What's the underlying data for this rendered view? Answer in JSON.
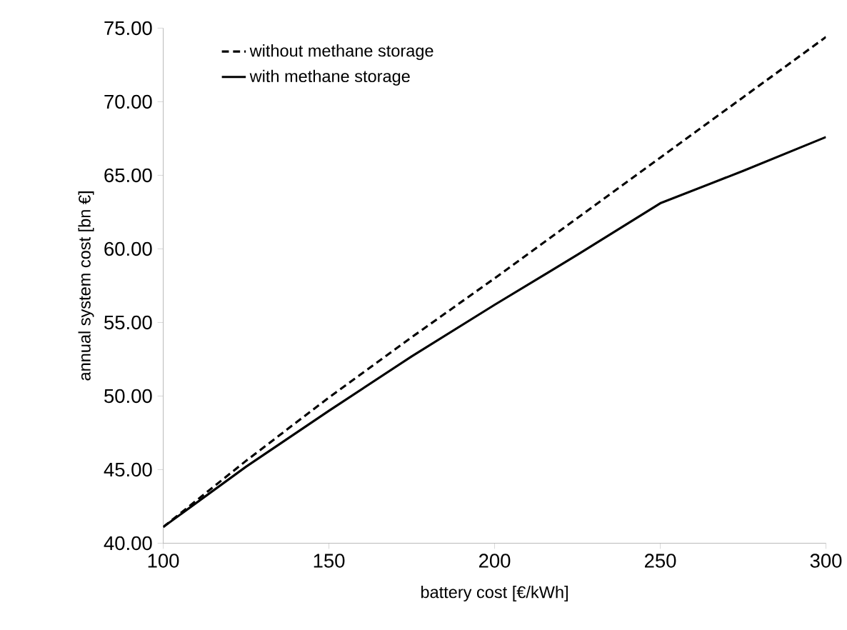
{
  "chart_data": {
    "type": "line",
    "xlabel": "battery cost [€/kWh]",
    "ylabel": "annual system cost [bn €]",
    "x": [
      100,
      125,
      150,
      175,
      200,
      225,
      250,
      275,
      300
    ],
    "series": [
      {
        "name": "without methane storage",
        "color": "#000000",
        "line_style": "dashed",
        "values": [
          41.1,
          45.6,
          49.9,
          54.0,
          58.0,
          62.1,
          66.2,
          70.3,
          74.4
        ]
      },
      {
        "name": "with methane storage",
        "color": "#000000",
        "line_style": "solid",
        "values": [
          41.1,
          45.2,
          49.0,
          52.7,
          56.2,
          59.6,
          63.1,
          65.3,
          67.6
        ]
      }
    ],
    "xlim": [
      100,
      300
    ],
    "xticks": [
      100,
      150,
      200,
      250,
      300
    ],
    "ylim": [
      40,
      75
    ],
    "yticks": [
      {
        "value": 40,
        "label": "40.00"
      },
      {
        "value": 45,
        "label": "45.00"
      },
      {
        "value": 50,
        "label": "50.00"
      },
      {
        "value": 55,
        "label": "55.00"
      },
      {
        "value": 60,
        "label": "60.00"
      },
      {
        "value": 65,
        "label": "65.00"
      },
      {
        "value": 70,
        "label": "70.00"
      },
      {
        "value": 75,
        "label": "75.00"
      }
    ],
    "legend": "top left",
    "grid": false,
    "marker": "none"
  }
}
